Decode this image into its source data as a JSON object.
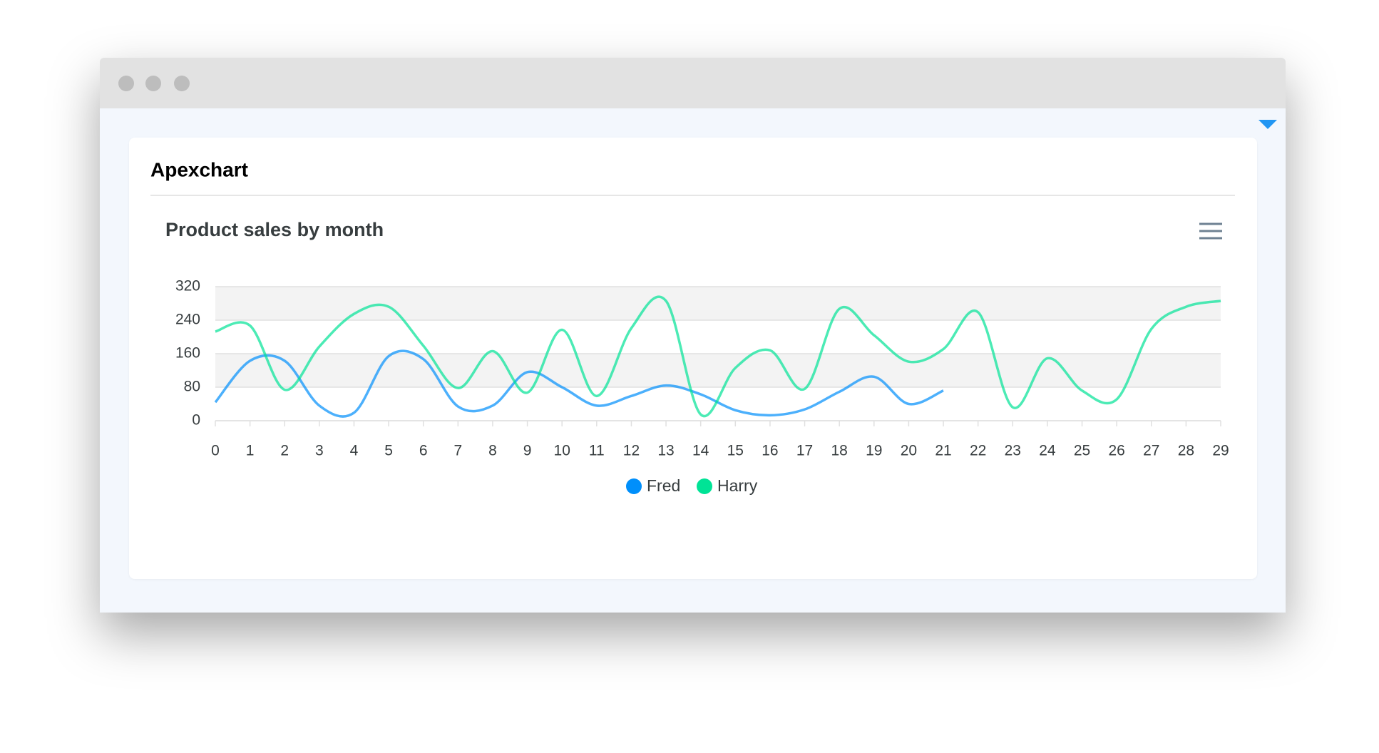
{
  "card": {
    "title": "Apexchart"
  },
  "chart_data": {
    "type": "line",
    "title": "Product sales by month",
    "x": [
      0,
      1,
      2,
      3,
      4,
      5,
      6,
      7,
      8,
      9,
      10,
      11,
      12,
      13,
      14,
      15,
      16,
      17,
      18,
      19,
      20,
      21,
      22,
      23,
      24,
      25,
      26,
      27,
      28,
      29
    ],
    "series": [
      {
        "name": "Fred",
        "color": "#008FFB",
        "values": [
          44,
          143,
          143,
          36,
          19,
          154,
          147,
          34,
          36,
          116,
          80,
          36,
          59,
          84,
          63,
          25,
          13,
          27,
          69,
          105,
          40,
          72,
          null,
          null,
          null,
          null,
          null,
          null,
          null,
          null
        ]
      },
      {
        "name": "Harry",
        "color": "#00E396",
        "values": [
          213,
          227,
          74,
          177,
          255,
          272,
          179,
          78,
          166,
          67,
          217,
          59,
          221,
          286,
          15,
          126,
          168,
          76,
          267,
          204,
          141,
          171,
          259,
          32,
          149,
          72,
          51,
          219,
          272,
          286
        ]
      }
    ],
    "xlim": [
      0,
      29
    ],
    "xticks": [
      0,
      1,
      2,
      3,
      4,
      5,
      6,
      7,
      8,
      9,
      10,
      11,
      12,
      13,
      14,
      15,
      16,
      17,
      18,
      19,
      20,
      21,
      22,
      23,
      24,
      25,
      26,
      27,
      28,
      29
    ],
    "ylim": [
      0,
      320
    ],
    "yticks": [
      0,
      80,
      160,
      240,
      320
    ],
    "grid": true,
    "grid_row_colors": [
      "#f3f3f3",
      "#ffffff"
    ],
    "legend": "bottom",
    "curve": "smooth"
  }
}
